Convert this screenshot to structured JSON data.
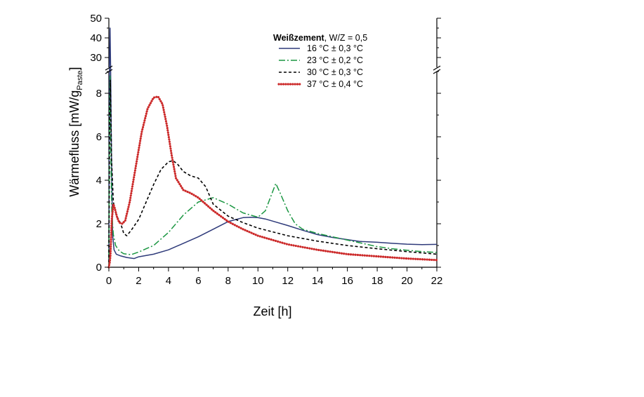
{
  "chart_data": {
    "type": "line",
    "title": "",
    "xlabel": "Zeit [h]",
    "ylabel": "Wärmefluss [mW/g",
    "ylabel_subscript": "Paste",
    "ylabel_suffix": "]",
    "xlim": [
      0,
      22
    ],
    "ylim_lower": [
      0,
      9
    ],
    "ylim_upper": [
      25,
      50
    ],
    "axis_break": true,
    "grid": false,
    "x_ticks": [
      "0",
      "2",
      "4",
      "6",
      "8",
      "10",
      "12",
      "14",
      "16",
      "18",
      "20",
      "22"
    ],
    "y_ticks_lower": [
      "0",
      "2",
      "4",
      "6",
      "8"
    ],
    "y_ticks_upper": [
      "30",
      "40",
      "50"
    ],
    "legend": {
      "position": "top-right",
      "title_bold": "Weißzement",
      "title_rest": ", W/Z = 0,5"
    },
    "series": [
      {
        "name": "16 °C ± 0,3 °C",
        "color": "#2e3a7a",
        "style": "solid",
        "x": [
          0,
          0.04,
          0.08,
          0.12,
          0.18,
          0.25,
          0.35,
          0.5,
          0.8,
          1.2,
          1.7,
          2.0,
          3,
          4,
          5,
          6,
          7,
          8,
          9,
          9.5,
          10,
          10.5,
          11,
          12,
          13,
          14,
          15,
          16,
          16.8,
          17,
          18,
          19,
          20,
          21,
          22
        ],
        "y": [
          0,
          10,
          45,
          20,
          5,
          1.5,
          0.8,
          0.6,
          0.52,
          0.45,
          0.4,
          0.48,
          0.6,
          0.8,
          1.1,
          1.4,
          1.75,
          2.1,
          2.28,
          2.3,
          2.28,
          2.22,
          2.12,
          1.92,
          1.7,
          1.5,
          1.37,
          1.27,
          1.19,
          1.18,
          1.15,
          1.1,
          1.06,
          1.04,
          1.05
        ]
      },
      {
        "name": "23 °C ± 0,2 °C",
        "color": "#1a9641",
        "style": "dashdot",
        "x": [
          0,
          0.04,
          0.08,
          0.12,
          0.2,
          0.3,
          0.45,
          0.7,
          1.0,
          1.5,
          2,
          3,
          4,
          5,
          6,
          7,
          8,
          9,
          10,
          10.5,
          11,
          11.2,
          11.5,
          12,
          12.5,
          13,
          14,
          15,
          16,
          17,
          18,
          19,
          20,
          21,
          22
        ],
        "y": [
          0,
          7,
          8.8,
          6,
          2.5,
          1.5,
          1.0,
          0.75,
          0.62,
          0.58,
          0.7,
          1.0,
          1.6,
          2.4,
          3.0,
          3.2,
          2.9,
          2.5,
          2.3,
          2.6,
          3.5,
          3.85,
          3.4,
          2.6,
          2.0,
          1.75,
          1.55,
          1.4,
          1.25,
          1.1,
          0.95,
          0.85,
          0.78,
          0.72,
          0.68
        ]
      },
      {
        "name": "30 °C ± 0,3 °C",
        "color": "#000000",
        "style": "dashed",
        "x": [
          0,
          0.05,
          0.1,
          0.18,
          0.3,
          0.5,
          0.8,
          1.0,
          1.2,
          1.5,
          2,
          2.5,
          3,
          3.5,
          4,
          4.3,
          4.6,
          5,
          5.5,
          6,
          6.5,
          7,
          8,
          9,
          10,
          12,
          14,
          16,
          18,
          20,
          22
        ],
        "y": [
          0,
          7,
          8.6,
          5,
          3.0,
          2.4,
          2.0,
          1.55,
          1.45,
          1.7,
          2.2,
          3.0,
          3.8,
          4.5,
          4.85,
          4.9,
          4.75,
          4.4,
          4.2,
          4.1,
          3.7,
          2.9,
          2.35,
          2.05,
          1.8,
          1.45,
          1.2,
          1.0,
          0.85,
          0.72,
          0.6
        ]
      },
      {
        "name": "37 °C ± 0,4 °C",
        "color": "#cc2a2a",
        "style": "dotted-thick",
        "x": [
          0,
          0.05,
          0.1,
          0.2,
          0.3,
          0.4,
          0.55,
          0.7,
          0.9,
          1.1,
          1.4,
          1.8,
          2.2,
          2.6,
          3.0,
          3.3,
          3.6,
          3.9,
          4.2,
          4.5,
          5.0,
          5.5,
          6,
          6.5,
          7,
          8,
          9,
          10,
          12,
          14,
          16,
          18,
          20,
          22
        ],
        "y": [
          0,
          0.2,
          0.5,
          2.2,
          2.9,
          2.7,
          2.3,
          2.05,
          2.0,
          2.15,
          3.0,
          4.6,
          6.2,
          7.3,
          7.8,
          7.85,
          7.5,
          6.5,
          5.2,
          4.1,
          3.55,
          3.4,
          3.2,
          2.9,
          2.6,
          2.1,
          1.75,
          1.45,
          1.05,
          0.8,
          0.6,
          0.5,
          0.4,
          0.33
        ]
      }
    ]
  }
}
